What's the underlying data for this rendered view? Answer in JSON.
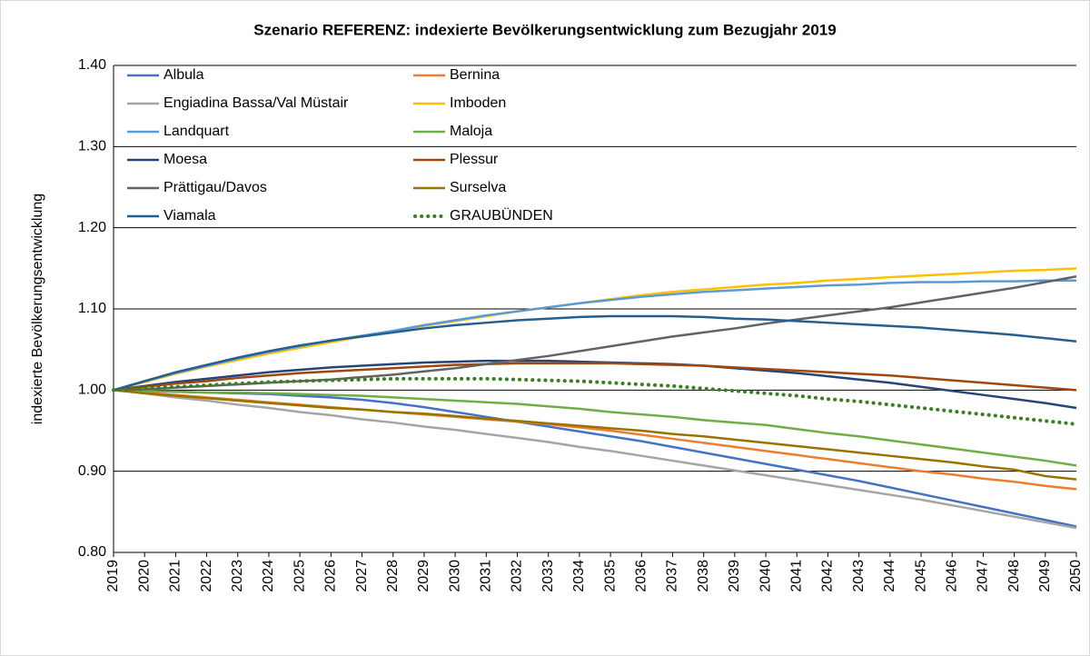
{
  "chart_data": {
    "type": "line",
    "title": "Szenario REFERENZ: indexierte Bevölkerungsentwicklung zum Bezugjahr 2019",
    "y_label": "indexierte Bevölkerungsentwicklung",
    "categories": [
      "2019",
      "2020",
      "2021",
      "2022",
      "2023",
      "2024",
      "2025",
      "2026",
      "2027",
      "2028",
      "2029",
      "2030",
      "2031",
      "2032",
      "2033",
      "2034",
      "2035",
      "2036",
      "2037",
      "2038",
      "2039",
      "2040",
      "2041",
      "2042",
      "2043",
      "2044",
      "2045",
      "2046",
      "2047",
      "2048",
      "2049",
      "2050"
    ],
    "ylim": [
      0.8,
      1.4
    ],
    "yticks": [
      {
        "value": 0.8,
        "label": "0.80"
      },
      {
        "value": 0.9,
        "label": "0.90"
      },
      {
        "value": 1.0,
        "label": "1.00"
      },
      {
        "value": 1.1,
        "label": "1.10"
      },
      {
        "value": 1.2,
        "label": "1.20"
      },
      {
        "value": 1.3,
        "label": "1.30"
      },
      {
        "value": 1.4,
        "label": "1.40"
      }
    ],
    "grid": true,
    "legend": "top-left",
    "series": [
      {
        "name": "Albula",
        "color": "#4472c4",
        "values": [
          1.0,
          0.999,
          0.998,
          0.997,
          0.996,
          0.995,
          0.993,
          0.991,
          0.988,
          0.984,
          0.979,
          0.973,
          0.967,
          0.961,
          0.955,
          0.949,
          0.943,
          0.937,
          0.93,
          0.923,
          0.916,
          0.909,
          0.902,
          0.895,
          0.888,
          0.88,
          0.872,
          0.864,
          0.856,
          0.848,
          0.84,
          0.832
        ]
      },
      {
        "name": "Bernina",
        "color": "#ed7d31",
        "values": [
          1.0,
          0.997,
          0.994,
          0.991,
          0.988,
          0.985,
          0.982,
          0.979,
          0.976,
          0.973,
          0.97,
          0.967,
          0.964,
          0.961,
          0.958,
          0.954,
          0.95,
          0.945,
          0.94,
          0.935,
          0.93,
          0.925,
          0.92,
          0.915,
          0.91,
          0.905,
          0.9,
          0.896,
          0.891,
          0.887,
          0.882,
          0.878
        ]
      },
      {
        "name": "Engiadina Bassa/Val Müstair",
        "color": "#a5a5a5",
        "values": [
          1.0,
          0.996,
          0.991,
          0.987,
          0.982,
          0.978,
          0.973,
          0.969,
          0.964,
          0.96,
          0.955,
          0.951,
          0.946,
          0.941,
          0.936,
          0.93,
          0.925,
          0.919,
          0.913,
          0.907,
          0.901,
          0.895,
          0.889,
          0.883,
          0.877,
          0.871,
          0.865,
          0.858,
          0.851,
          0.844,
          0.837,
          0.83
        ]
      },
      {
        "name": "Imboden",
        "color": "#ffc000",
        "values": [
          1.0,
          1.01,
          1.02,
          1.029,
          1.037,
          1.045,
          1.052,
          1.059,
          1.066,
          1.072,
          1.079,
          1.085,
          1.091,
          1.097,
          1.102,
          1.107,
          1.112,
          1.117,
          1.121,
          1.124,
          1.127,
          1.13,
          1.132,
          1.135,
          1.137,
          1.139,
          1.141,
          1.143,
          1.145,
          1.147,
          1.148,
          1.15
        ]
      },
      {
        "name": "Landquart",
        "color": "#5b9bd5",
        "values": [
          1.0,
          1.011,
          1.021,
          1.03,
          1.039,
          1.047,
          1.054,
          1.061,
          1.067,
          1.073,
          1.08,
          1.086,
          1.092,
          1.097,
          1.102,
          1.107,
          1.111,
          1.115,
          1.118,
          1.121,
          1.123,
          1.125,
          1.127,
          1.129,
          1.13,
          1.132,
          1.133,
          1.133,
          1.134,
          1.134,
          1.135,
          1.135
        ]
      },
      {
        "name": "Maloja",
        "color": "#70ad47",
        "values": [
          1.0,
          0.999,
          0.998,
          0.997,
          0.997,
          0.996,
          0.995,
          0.994,
          0.993,
          0.991,
          0.989,
          0.987,
          0.985,
          0.983,
          0.98,
          0.977,
          0.973,
          0.97,
          0.967,
          0.963,
          0.96,
          0.957,
          0.952,
          0.947,
          0.943,
          0.938,
          0.933,
          0.928,
          0.923,
          0.918,
          0.913,
          0.907
        ]
      },
      {
        "name": "Moesa",
        "color": "#264478",
        "values": [
          1.0,
          1.005,
          1.01,
          1.014,
          1.018,
          1.022,
          1.025,
          1.028,
          1.03,
          1.032,
          1.034,
          1.035,
          1.036,
          1.036,
          1.036,
          1.035,
          1.034,
          1.033,
          1.032,
          1.03,
          1.027,
          1.024,
          1.021,
          1.017,
          1.013,
          1.009,
          1.004,
          0.999,
          0.994,
          0.989,
          0.984,
          0.978
        ]
      },
      {
        "name": "Plessur",
        "color": "#9e480e",
        "values": [
          1.0,
          1.004,
          1.008,
          1.011,
          1.015,
          1.018,
          1.021,
          1.023,
          1.025,
          1.027,
          1.029,
          1.031,
          1.032,
          1.033,
          1.033,
          1.033,
          1.033,
          1.032,
          1.031,
          1.03,
          1.028,
          1.026,
          1.024,
          1.022,
          1.02,
          1.018,
          1.015,
          1.012,
          1.009,
          1.006,
          1.003,
          1.0
        ]
      },
      {
        "name": "Prättigau/Davos",
        "color": "#636363",
        "values": [
          1.0,
          1.001,
          1.003,
          1.005,
          1.007,
          1.009,
          1.011,
          1.013,
          1.016,
          1.019,
          1.023,
          1.027,
          1.032,
          1.037,
          1.042,
          1.048,
          1.054,
          1.06,
          1.066,
          1.071,
          1.076,
          1.082,
          1.087,
          1.092,
          1.097,
          1.102,
          1.108,
          1.114,
          1.12,
          1.126,
          1.133,
          1.14
        ]
      },
      {
        "name": "Surselva",
        "color": "#997300",
        "values": [
          1.0,
          0.996,
          0.993,
          0.99,
          0.987,
          0.984,
          0.981,
          0.978,
          0.976,
          0.973,
          0.971,
          0.968,
          0.965,
          0.962,
          0.959,
          0.956,
          0.953,
          0.95,
          0.946,
          0.943,
          0.939,
          0.935,
          0.931,
          0.927,
          0.923,
          0.919,
          0.915,
          0.911,
          0.906,
          0.902,
          0.894,
          0.89
        ]
      },
      {
        "name": "Viamala",
        "color": "#255e91",
        "values": [
          1.0,
          1.011,
          1.022,
          1.031,
          1.04,
          1.048,
          1.055,
          1.061,
          1.066,
          1.071,
          1.076,
          1.08,
          1.083,
          1.086,
          1.088,
          1.09,
          1.091,
          1.091,
          1.091,
          1.09,
          1.088,
          1.087,
          1.085,
          1.083,
          1.081,
          1.079,
          1.077,
          1.074,
          1.071,
          1.068,
          1.064,
          1.06
        ]
      },
      {
        "name": "GRAUBÜNDEN",
        "color": "#3a7d22",
        "style": "dotted",
        "values": [
          1.0,
          1.002,
          1.004,
          1.006,
          1.008,
          1.01,
          1.011,
          1.012,
          1.013,
          1.014,
          1.014,
          1.014,
          1.014,
          1.013,
          1.012,
          1.011,
          1.009,
          1.007,
          1.005,
          1.002,
          0.999,
          0.996,
          0.993,
          0.989,
          0.986,
          0.982,
          0.978,
          0.974,
          0.97,
          0.966,
          0.962,
          0.958
        ]
      }
    ]
  }
}
